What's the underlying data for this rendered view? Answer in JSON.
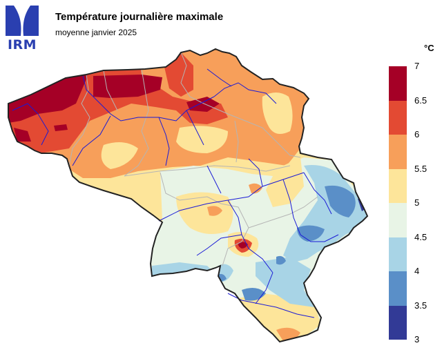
{
  "header": {
    "title": "Température journalière maximale",
    "subtitle": "moyenne janvier 2025"
  },
  "logo": {
    "text": "IRM",
    "color": "#2a3fb0"
  },
  "legend": {
    "unit": "°C",
    "ticks": [
      "7",
      "6.5",
      "6",
      "5.5",
      "5",
      "4.5",
      "4",
      "3.5",
      "3"
    ],
    "bins": [
      {
        "from": 6.5,
        "to": 7.0,
        "color": "#a50026"
      },
      {
        "from": 6.0,
        "to": 6.5,
        "color": "#e34a33"
      },
      {
        "from": 5.5,
        "to": 6.0,
        "color": "#f79f5a"
      },
      {
        "from": 5.0,
        "to": 5.5,
        "color": "#fde59a"
      },
      {
        "from": 4.5,
        "to": 5.0,
        "color": "#e8f4e6"
      },
      {
        "from": 4.0,
        "to": 4.5,
        "color": "#a8d4e6"
      },
      {
        "from": 3.5,
        "to": 4.0,
        "color": "#5a8fc8"
      },
      {
        "from": 3.0,
        "to": 3.5,
        "color": "#323a96"
      }
    ]
  },
  "map": {
    "region": "Belgique",
    "variable": "Température journalière maximale moyenne",
    "colors": {
      "border": "#222222",
      "province_lines": "#b5b5b5",
      "rivers": "#1a1ad6"
    }
  }
}
